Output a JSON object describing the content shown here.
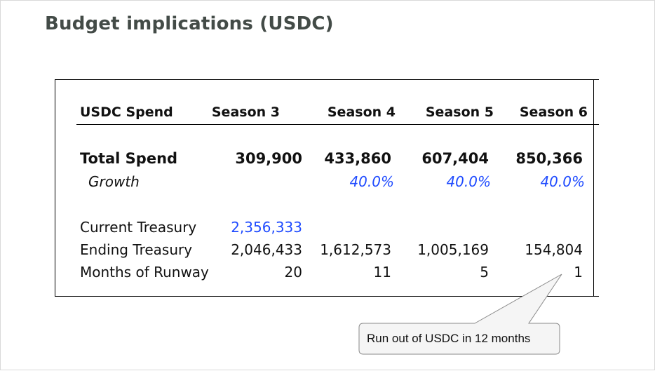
{
  "title": "Budget implications (USDC)",
  "table": {
    "header": {
      "label": "USDC Spend",
      "seasons": [
        "Season 3",
        "Season 4",
        "Season 5",
        "Season 6"
      ]
    },
    "total_spend": {
      "label": "Total Spend",
      "values": [
        "309,900",
        "433,860",
        "607,404",
        "850,366"
      ]
    },
    "growth": {
      "label": "Growth",
      "values": [
        "",
        "40.0%",
        "40.0%",
        "40.0%"
      ]
    },
    "current_treasury": {
      "label": "Current Treasury",
      "values": [
        "2,356,333",
        "",
        "",
        ""
      ]
    },
    "ending_treasury": {
      "label": "Ending Treasury",
      "values": [
        "2,046,433",
        "1,612,573",
        "1,005,169",
        "154,804"
      ]
    },
    "months_of_runway": {
      "label": "Months of Runway",
      "values": [
        "20",
        "11",
        "5",
        "1"
      ]
    }
  },
  "callout": {
    "text": "Run out of USDC in 12 months"
  },
  "colors": {
    "title": "#434b47",
    "accent_blue": "#1f4bff"
  }
}
